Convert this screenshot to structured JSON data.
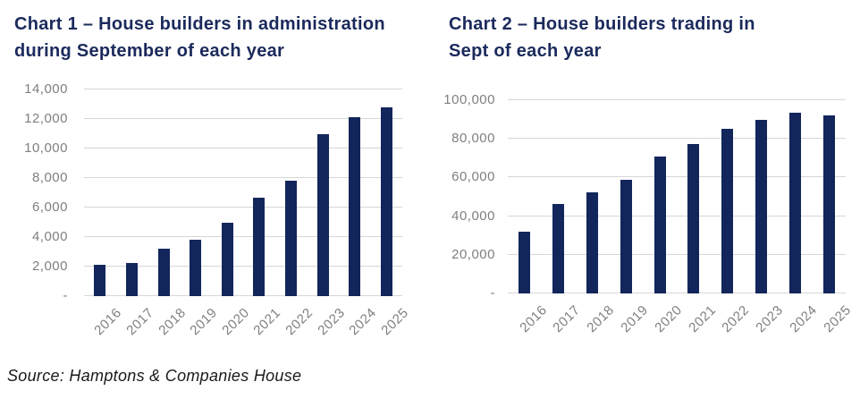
{
  "source": "Source: Hamptons & Companies House",
  "colors": {
    "title_navy": "#1B2A5C",
    "bar_navy": "#12265C",
    "axis_text_gray": "#7F7F7F",
    "gridline_gray": "#D6D6D6"
  },
  "chart_data": [
    {
      "type": "bar",
      "title": "Chart 1 – House builders in administration during September of each year",
      "title_lines": [
        "Chart 1 – House builders in administration",
        "during September of each year"
      ],
      "categories": [
        "2016",
        "2017",
        "2018",
        "2019",
        "2020",
        "2021",
        "2022",
        "2023",
        "2024",
        "2025"
      ],
      "values": [
        2100,
        2250,
        3200,
        3800,
        4950,
        6650,
        7800,
        11000,
        12100,
        12800
      ],
      "xlabel": "",
      "ylabel": "",
      "ylim": [
        0,
        14000
      ],
      "ytick_step": 2000,
      "zero_tick_label": "-",
      "grid": true,
      "legend": null,
      "bar_color": "#12265C"
    },
    {
      "type": "bar",
      "title": "Chart 2 – House builders trading in Sept of each year",
      "title_lines": [
        "Chart 2 – House builders trading in",
        "Sept of each year"
      ],
      "categories": [
        "2016",
        "2017",
        "2018",
        "2019",
        "2020",
        "2021",
        "2022",
        "2023",
        "2024",
        "2025"
      ],
      "values": [
        32000,
        46500,
        52500,
        59000,
        71000,
        77500,
        85000,
        90000,
        93500,
        92000
      ],
      "xlabel": "",
      "ylabel": "",
      "ylim": [
        0,
        100000
      ],
      "ytick_step": 20000,
      "zero_tick_label": "-",
      "grid": true,
      "legend": null,
      "bar_color": "#12265C"
    }
  ]
}
